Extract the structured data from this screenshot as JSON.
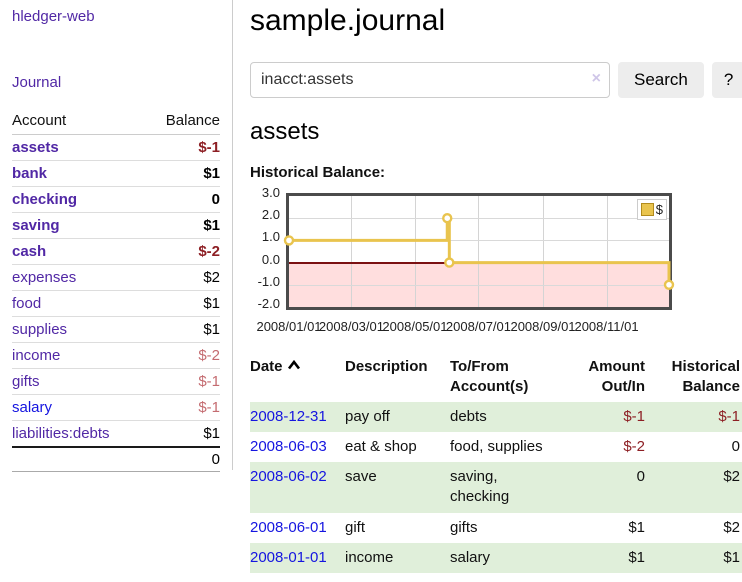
{
  "app": {
    "brand": "hledger-web"
  },
  "sidebar": {
    "journal_link": "Journal",
    "table": {
      "account_header": "Account",
      "balance_header": "Balance",
      "rows": [
        {
          "name": "assets",
          "balance": "$-1"
        },
        {
          "name": "bank",
          "balance": "$1"
        },
        {
          "name": "checking",
          "balance": "0"
        },
        {
          "name": "saving",
          "balance": "$1"
        },
        {
          "name": "cash",
          "balance": "$-2"
        },
        {
          "name": "expenses",
          "balance": "$2"
        },
        {
          "name": "food",
          "balance": "$1"
        },
        {
          "name": "supplies",
          "balance": "$1"
        },
        {
          "name": "income",
          "balance": "$-2"
        },
        {
          "name": "gifts",
          "balance": "$-1"
        },
        {
          "name": "salary",
          "balance": "$-1"
        },
        {
          "name": "liabilities:debts",
          "balance": "$1"
        }
      ],
      "total": "0"
    }
  },
  "main": {
    "title": "sample.journal",
    "search": {
      "value": "inacct:assets",
      "clear": "×",
      "button": "Search",
      "help": "?"
    },
    "heading": "assets",
    "chart_title": "Historical Balance:"
  },
  "chart_data": {
    "type": "line",
    "step": true,
    "title": "Historical Balance",
    "series": [
      {
        "name": "$",
        "points": [
          [
            "2008-01-01",
            1
          ],
          [
            "2008-06-01",
            2
          ],
          [
            "2008-06-03",
            0
          ],
          [
            "2008-12-31",
            -1
          ]
        ]
      }
    ],
    "x_range": [
      "2008-01-01",
      "2008-12-31"
    ],
    "x_ticks": [
      "2008/01/01",
      "2008/03/01",
      "2008/05/01",
      "2008/07/01",
      "2008/09/01",
      "2008/11/01"
    ],
    "y_ticks": [
      3.0,
      2.0,
      1.0,
      0.0,
      -1.0,
      -2.0
    ],
    "y_gridlines": [
      2,
      1,
      -1
    ],
    "ylim": [
      -2,
      3
    ],
    "legend": {
      "label": "$",
      "position": "top-right"
    },
    "colors": {
      "line": "#e9c44e",
      "negative_region": "#ffdede",
      "zero_line": "#7b1012"
    },
    "grid": true
  },
  "register": {
    "headers": {
      "date": "Date",
      "description": "Description",
      "accounts": "To/From Account(s)",
      "amount": "Amount Out/In",
      "balance": "Historical Balance"
    },
    "rows": [
      {
        "date": "2008-12-31",
        "description": "pay off",
        "accounts": "debts",
        "amount": "$-1",
        "balance": "$-1"
      },
      {
        "date": "2008-06-03",
        "description": "eat & shop",
        "accounts": "food, supplies",
        "amount": "$-2",
        "balance": "0"
      },
      {
        "date": "2008-06-02",
        "description": "save",
        "accounts": "saving, checking",
        "amount": "0",
        "balance": "$2"
      },
      {
        "date": "2008-06-01",
        "description": "gift",
        "accounts": "gifts",
        "amount": "$1",
        "balance": "$2"
      },
      {
        "date": "2008-01-01",
        "description": "income",
        "accounts": "salary",
        "amount": "$1",
        "balance": "$1"
      }
    ]
  }
}
